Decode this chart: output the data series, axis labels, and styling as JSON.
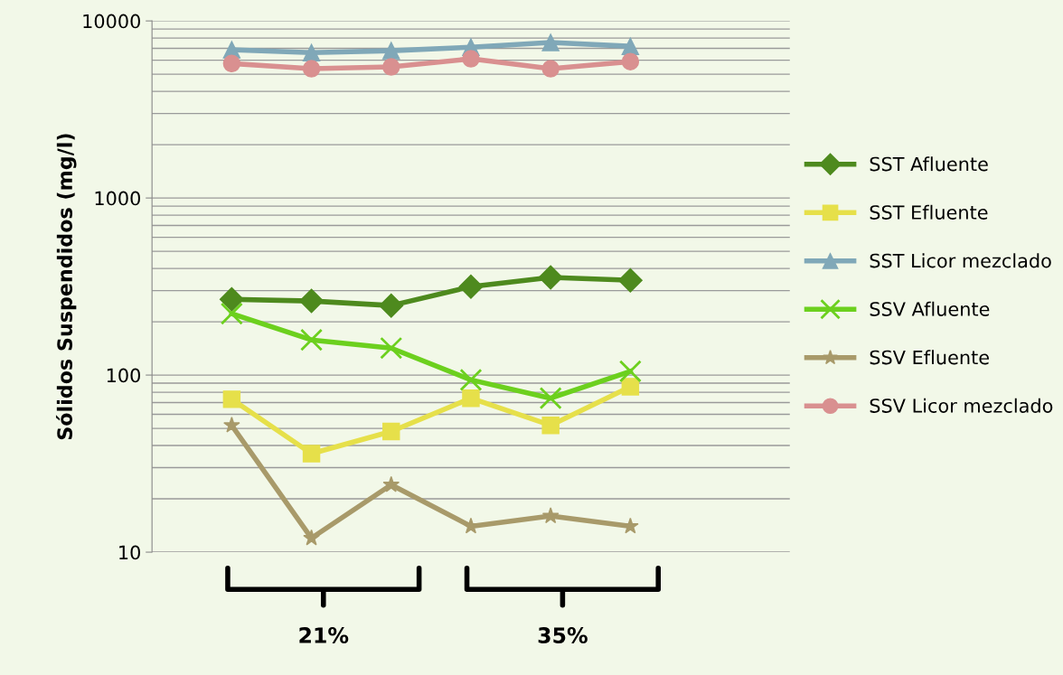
{
  "chart_data": {
    "type": "line",
    "ylabel": "Sólidos Suspendidos (mg/l)",
    "categories": [
      null,
      null,
      null,
      null,
      null,
      null
    ],
    "series": [
      {
        "name": "SST Afluente",
        "color": "#4e8a1e",
        "marker": "diamond",
        "values": [
          268,
          262,
          247,
          316,
          356,
          343
        ]
      },
      {
        "name": "SST Efluente",
        "color": "#e6e04a",
        "marker": "square",
        "values": [
          73,
          36,
          48,
          74,
          52,
          86
        ]
      },
      {
        "name": "SST Licor mezclado",
        "color": "#80a8b8",
        "marker": "triangle",
        "values": [
          6870,
          6620,
          6790,
          7110,
          7550,
          7190
        ]
      },
      {
        "name": "SSV Afluente",
        "color": "#6cd01e",
        "marker": "cross",
        "values": [
          222,
          158,
          142,
          94,
          74,
          105
        ]
      },
      {
        "name": "SSV Efluente",
        "color": "#a89a6a",
        "marker": "star",
        "values": [
          52,
          12,
          24,
          14,
          16,
          14
        ]
      },
      {
        "name": "SSV Licor mezclado",
        "color": "#d99090",
        "marker": "circle",
        "values": [
          5750,
          5370,
          5500,
          6110,
          5370,
          5890
        ]
      }
    ],
    "log": "y",
    "ylim": [
      10,
      10000
    ],
    "yticks": [
      10,
      100,
      1000,
      10000
    ],
    "grid": "y",
    "legend": "right",
    "tick_labels": "y",
    "annotations": [
      "21%",
      "35%"
    ]
  }
}
